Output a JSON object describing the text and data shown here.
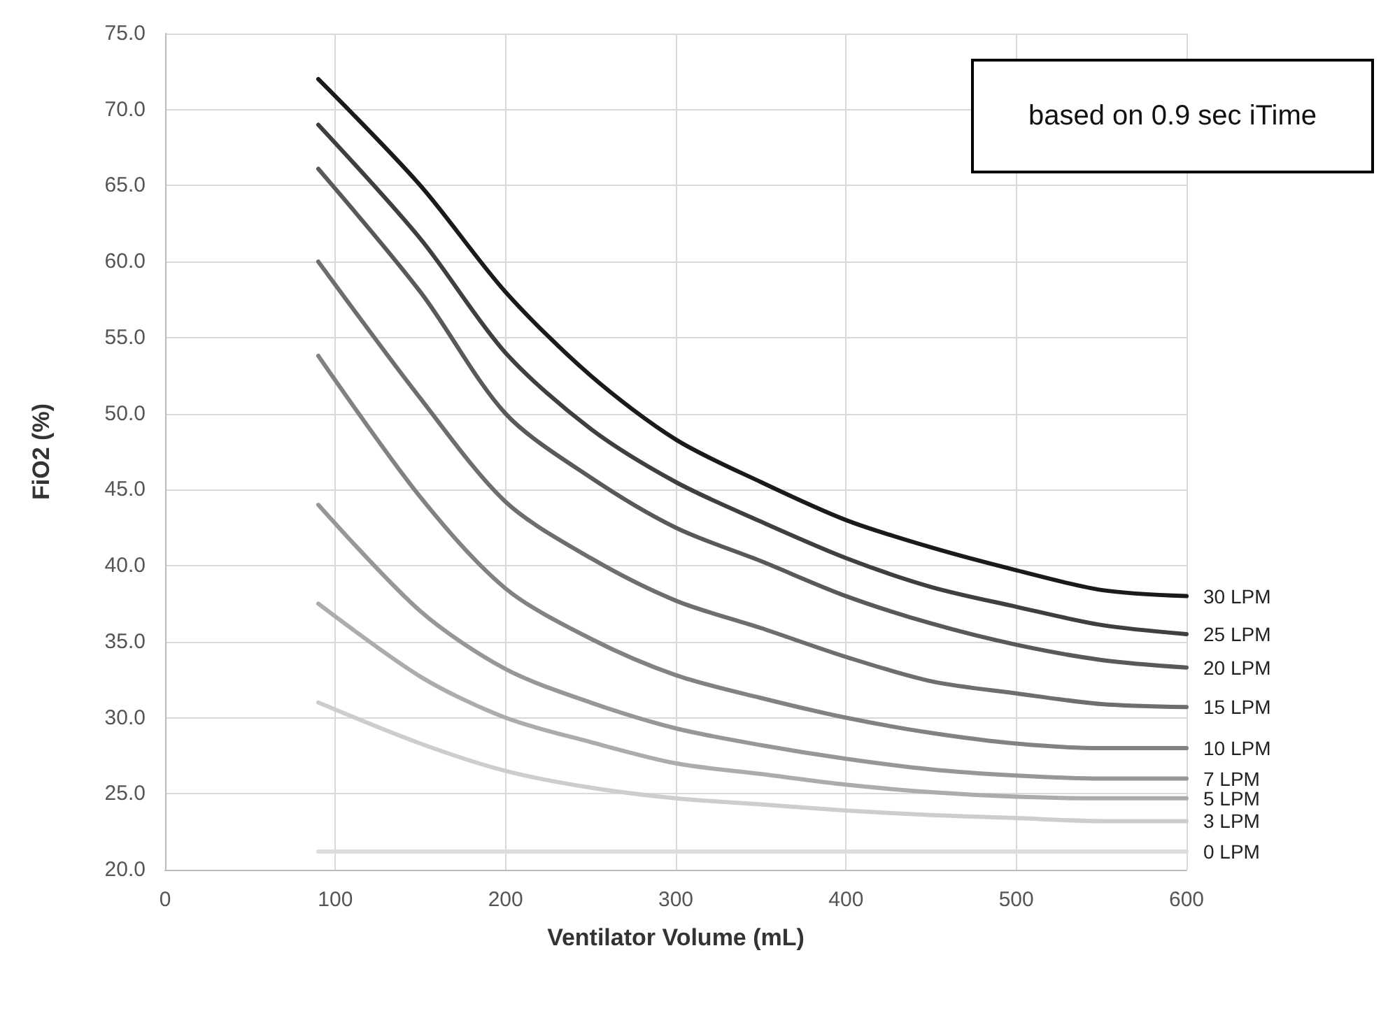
{
  "chart_data": {
    "type": "line",
    "xlabel": "Ventilator Volume (mL)",
    "ylabel": "FiO2 (%)",
    "annotations": [
      "based on 0.9 sec iTime"
    ],
    "x": [
      90,
      150,
      200,
      250,
      300,
      350,
      400,
      450,
      500,
      550,
      600
    ],
    "xlim": [
      0,
      600
    ],
    "xticks": [
      0,
      100,
      200,
      300,
      400,
      500,
      600
    ],
    "ylim": [
      20,
      75
    ],
    "yticks": [
      {
        "value": 20,
        "label": "20.0"
      },
      {
        "value": 25,
        "label": "25.0"
      },
      {
        "value": 30,
        "label": "30.0"
      },
      {
        "value": 35,
        "label": "35.0"
      },
      {
        "value": 40,
        "label": "40.0"
      },
      {
        "value": 45,
        "label": "45.0"
      },
      {
        "value": 50,
        "label": "50.0"
      },
      {
        "value": 55,
        "label": "55.0"
      },
      {
        "value": 60,
        "label": "60.0"
      },
      {
        "value": 65,
        "label": "65.0"
      },
      {
        "value": 70,
        "label": "70.0"
      },
      {
        "value": 75,
        "label": "75.0"
      }
    ],
    "grid": true,
    "legend": false,
    "marker": "none",
    "line_style": "solid",
    "series": [
      {
        "name": "30 LPM",
        "color": "#1a1a1a",
        "values": [
          72.0,
          65.0,
          58.0,
          52.5,
          48.3,
          45.5,
          43.0,
          41.2,
          39.7,
          38.4,
          38.0
        ]
      },
      {
        "name": "25 LPM",
        "color": "#3f3f3f",
        "values": [
          69.0,
          61.5,
          54.0,
          49.0,
          45.5,
          42.9,
          40.5,
          38.6,
          37.3,
          36.1,
          35.5
        ]
      },
      {
        "name": "20 LPM",
        "color": "#595959",
        "values": [
          66.1,
          58.0,
          50.0,
          45.8,
          42.5,
          40.3,
          38.0,
          36.2,
          34.8,
          33.8,
          33.3
        ]
      },
      {
        "name": "15 LPM",
        "color": "#6e6e6e",
        "values": [
          60.0,
          51.0,
          44.2,
          40.5,
          37.7,
          35.9,
          34.0,
          32.4,
          31.6,
          30.9,
          30.7
        ]
      },
      {
        "name": "10 LPM",
        "color": "#828282",
        "values": [
          53.8,
          44.5,
          38.5,
          35.2,
          32.8,
          31.3,
          30.0,
          29.0,
          28.3,
          28.0,
          28.0
        ]
      },
      {
        "name": "7 LPM",
        "color": "#979797",
        "values": [
          44.0,
          37.0,
          33.2,
          31.0,
          29.3,
          28.2,
          27.3,
          26.6,
          26.2,
          26.0,
          26.0
        ]
      },
      {
        "name": "5 LPM",
        "color": "#acacac",
        "values": [
          37.5,
          32.7,
          30.0,
          28.4,
          27.0,
          26.3,
          25.6,
          25.1,
          24.8,
          24.7,
          24.7
        ]
      },
      {
        "name": "3 LPM",
        "color": "#cdcdcd",
        "values": [
          31.0,
          28.3,
          26.5,
          25.4,
          24.7,
          24.3,
          23.9,
          23.6,
          23.4,
          23.2,
          23.2
        ]
      },
      {
        "name": "0 LPM",
        "color": "#dcdcdc",
        "values": [
          21.2,
          21.2,
          21.2,
          21.2,
          21.2,
          21.2,
          21.2,
          21.2,
          21.2,
          21.2,
          21.2
        ]
      }
    ]
  }
}
